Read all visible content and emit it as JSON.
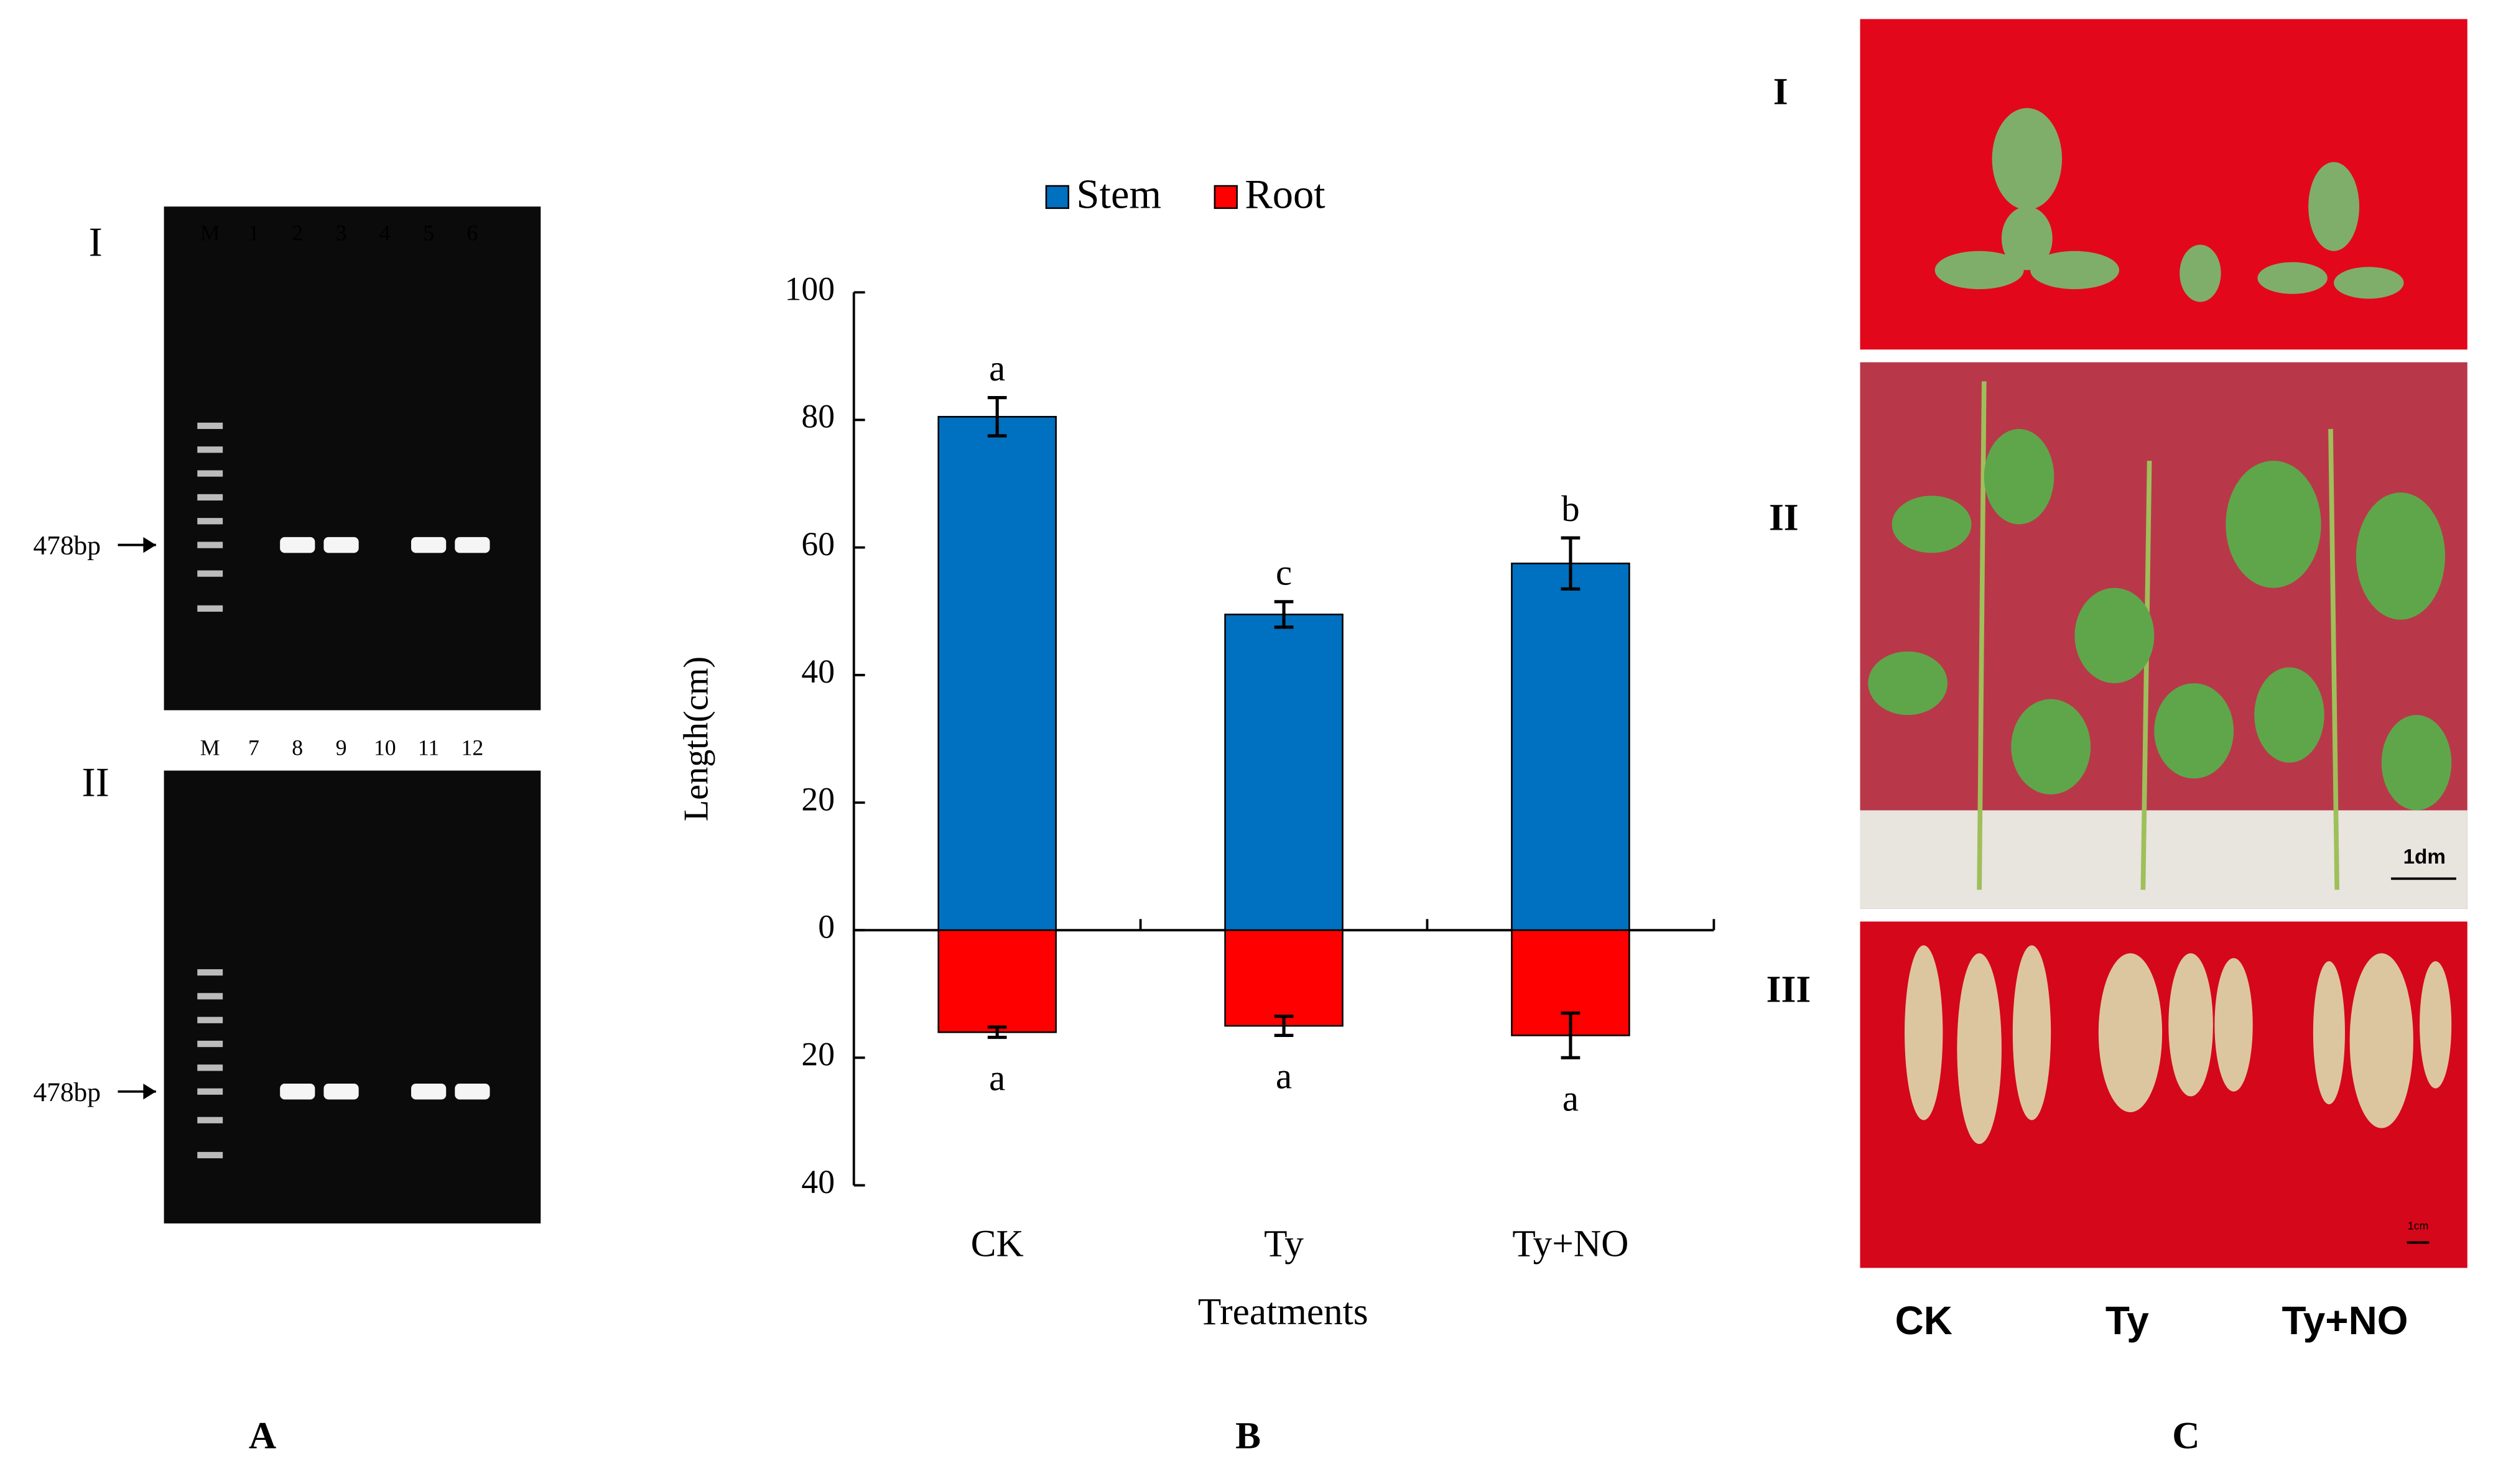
{
  "chart_data": {
    "type": "bar",
    "legend": "top",
    "panel_label": "B",
    "categories": [
      "CK",
      "Ty",
      "Ty+NO"
    ],
    "xlabel": "Treatments",
    "ylabel": "Length(cm)",
    "ylim": [
      -40,
      100
    ],
    "yticks": [
      {
        "value": -40,
        "label": "40"
      },
      {
        "value": -20,
        "label": "20"
      },
      0,
      20,
      40,
      60,
      80,
      100
    ],
    "series": [
      {
        "name": "Stem",
        "color": "#0070c0",
        "values": [
          80.5,
          49.5,
          57.5
        ],
        "errors": [
          3,
          2,
          4
        ],
        "letters": [
          "a",
          "c",
          "b"
        ]
      },
      {
        "name": "Root",
        "color": "#ff0000",
        "values": [
          -16,
          -15,
          -16.5
        ],
        "errors": [
          0.8,
          1.5,
          3.5
        ],
        "letters": [
          "a",
          "a",
          "a"
        ]
      }
    ]
  },
  "gel": {
    "panel_label": "A",
    "gels": [
      {
        "label": "I",
        "lanes": [
          "M",
          "1",
          "2",
          "3",
          "4",
          "5",
          "6"
        ],
        "marker": "478bp"
      },
      {
        "label": "II",
        "lanes": [
          "M",
          "7",
          "8",
          "9",
          "10",
          "11",
          "12"
        ],
        "marker": "478bp"
      }
    ]
  },
  "photos": {
    "panel_label": "C",
    "rows": [
      "I",
      "II",
      "III"
    ],
    "scale_bars": [
      "1dm",
      "1cm"
    ],
    "groups": [
      "CK",
      "Ty",
      "Ty+NO"
    ]
  }
}
